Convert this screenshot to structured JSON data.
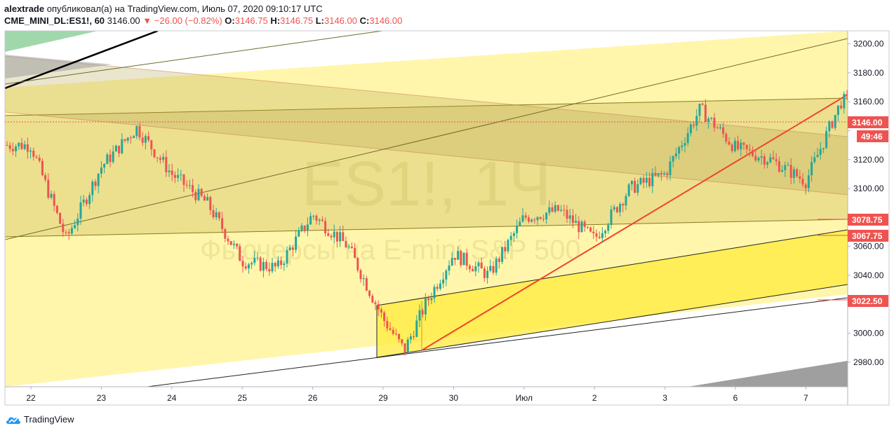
{
  "header": {
    "author": "alextrade",
    "published_text": "опубликовал(а) на TradingView.com, Июль 07, 2020 09:10:17 UTC",
    "symbol": "CME_MINI_DL:ES1!, 60",
    "last": "3146.00",
    "change": "−26.00 (−0.82%)",
    "o_label": "O:",
    "o_value": "3146.75",
    "h_label": "H:",
    "h_value": "3146.75",
    "l_label": "L:",
    "l_value": "3146.00",
    "c_label": "C:",
    "c_value": "3146.00"
  },
  "watermark": {
    "line1": "ES1!, 1Ч",
    "line2": "Фьючерсы на E-mini S&P 500"
  },
  "price_labels": {
    "last": "3146.00",
    "countdown": "49:46",
    "level1": "3078.75",
    "level2": "3067.75",
    "level3": "3022.50"
  },
  "footer": {
    "brand": "TradingView"
  },
  "colors": {
    "up": "#26a69a",
    "down": "#ef5350",
    "zone": "#fff59d",
    "band": "#c9b65a",
    "trend": "#f0452f"
  },
  "chart_data": {
    "type": "candlestick",
    "y_ticks": [
      2980,
      3000,
      3020,
      3040,
      3060,
      3080,
      3100,
      3120,
      3140,
      3160,
      3180,
      3200
    ],
    "y_tick_labels": [
      "2980.00",
      "3000.00",
      "",
      "3040.00",
      "3060.00",
      "",
      "3100.00",
      "3120.00",
      "",
      "3160.00",
      "3180.00",
      "3200.00"
    ],
    "ylim": [
      2963,
      3209
    ],
    "x_labels": [
      "22",
      "23",
      "24",
      "25",
      "26",
      "29",
      "30",
      "Июл",
      "2",
      "3",
      "6",
      "7"
    ],
    "horizontal_lines": [
      3146.0
    ],
    "marked_levels": [
      3078.75,
      3067.75,
      3022.5
    ],
    "anchors": [
      [
        22,
        3130
      ],
      [
        22.5,
        3065
      ],
      [
        23,
        3115
      ],
      [
        23.5,
        3142
      ],
      [
        24,
        3110
      ],
      [
        24.5,
        3090
      ],
      [
        25,
        3050
      ],
      [
        25.5,
        3045
      ],
      [
        26,
        3082
      ],
      [
        26.5,
        3060
      ],
      [
        27,
        3010
      ],
      [
        27.3,
        2988
      ],
      [
        27.6,
        3020
      ],
      [
        28,
        3055
      ],
      [
        28.5,
        3040
      ],
      [
        29,
        3080
      ],
      [
        29.5,
        3085
      ],
      [
        30,
        3065
      ],
      [
        30.5,
        3100
      ],
      [
        31,
        3110
      ],
      [
        31.5,
        3155
      ],
      [
        32,
        3128
      ],
      [
        32.5,
        3120
      ],
      [
        33,
        3105
      ],
      [
        33.5,
        3160
      ],
      [
        34,
        3168
      ],
      [
        34.5,
        3166
      ],
      [
        34.8,
        3178
      ],
      [
        35.1,
        3150
      ]
    ]
  }
}
